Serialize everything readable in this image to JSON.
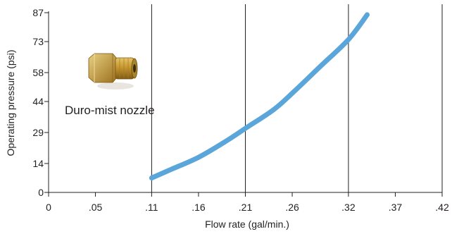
{
  "chart_data": {
    "type": "line",
    "title": "",
    "xlabel": "Flow rate (gal/min.)",
    "ylabel": "Operating pressure (psi)",
    "xlim": [
      0,
      0.42
    ],
    "ylim": [
      0,
      87
    ],
    "x_ticks": [
      0,
      0.05,
      0.11,
      0.16,
      0.21,
      0.26,
      0.32,
      0.37,
      0.42
    ],
    "x_tick_labels": [
      "0",
      ".05",
      ".11",
      ".16",
      ".21",
      ".26",
      ".32",
      ".37",
      ".42"
    ],
    "y_ticks": [
      0,
      14,
      29,
      44,
      58,
      73,
      87
    ],
    "y_tick_labels": [
      "0",
      "14",
      "29",
      "44",
      "58",
      "73",
      "87"
    ],
    "vertical_gridlines_at": [
      0.11,
      0.21,
      0.32,
      0.42
    ],
    "grid": "vertical",
    "legend": "none",
    "annotation": "Duro-mist nozzle",
    "series": [
      {
        "color": "#5aa5d9",
        "points": [
          {
            "x": 0.11,
            "y": 7
          },
          {
            "x": 0.13,
            "y": 11
          },
          {
            "x": 0.16,
            "y": 17
          },
          {
            "x": 0.19,
            "y": 25
          },
          {
            "x": 0.21,
            "y": 31
          },
          {
            "x": 0.24,
            "y": 40
          },
          {
            "x": 0.26,
            "y": 48
          },
          {
            "x": 0.29,
            "y": 61
          },
          {
            "x": 0.32,
            "y": 74
          },
          {
            "x": 0.34,
            "y": 86
          }
        ]
      }
    ]
  }
}
